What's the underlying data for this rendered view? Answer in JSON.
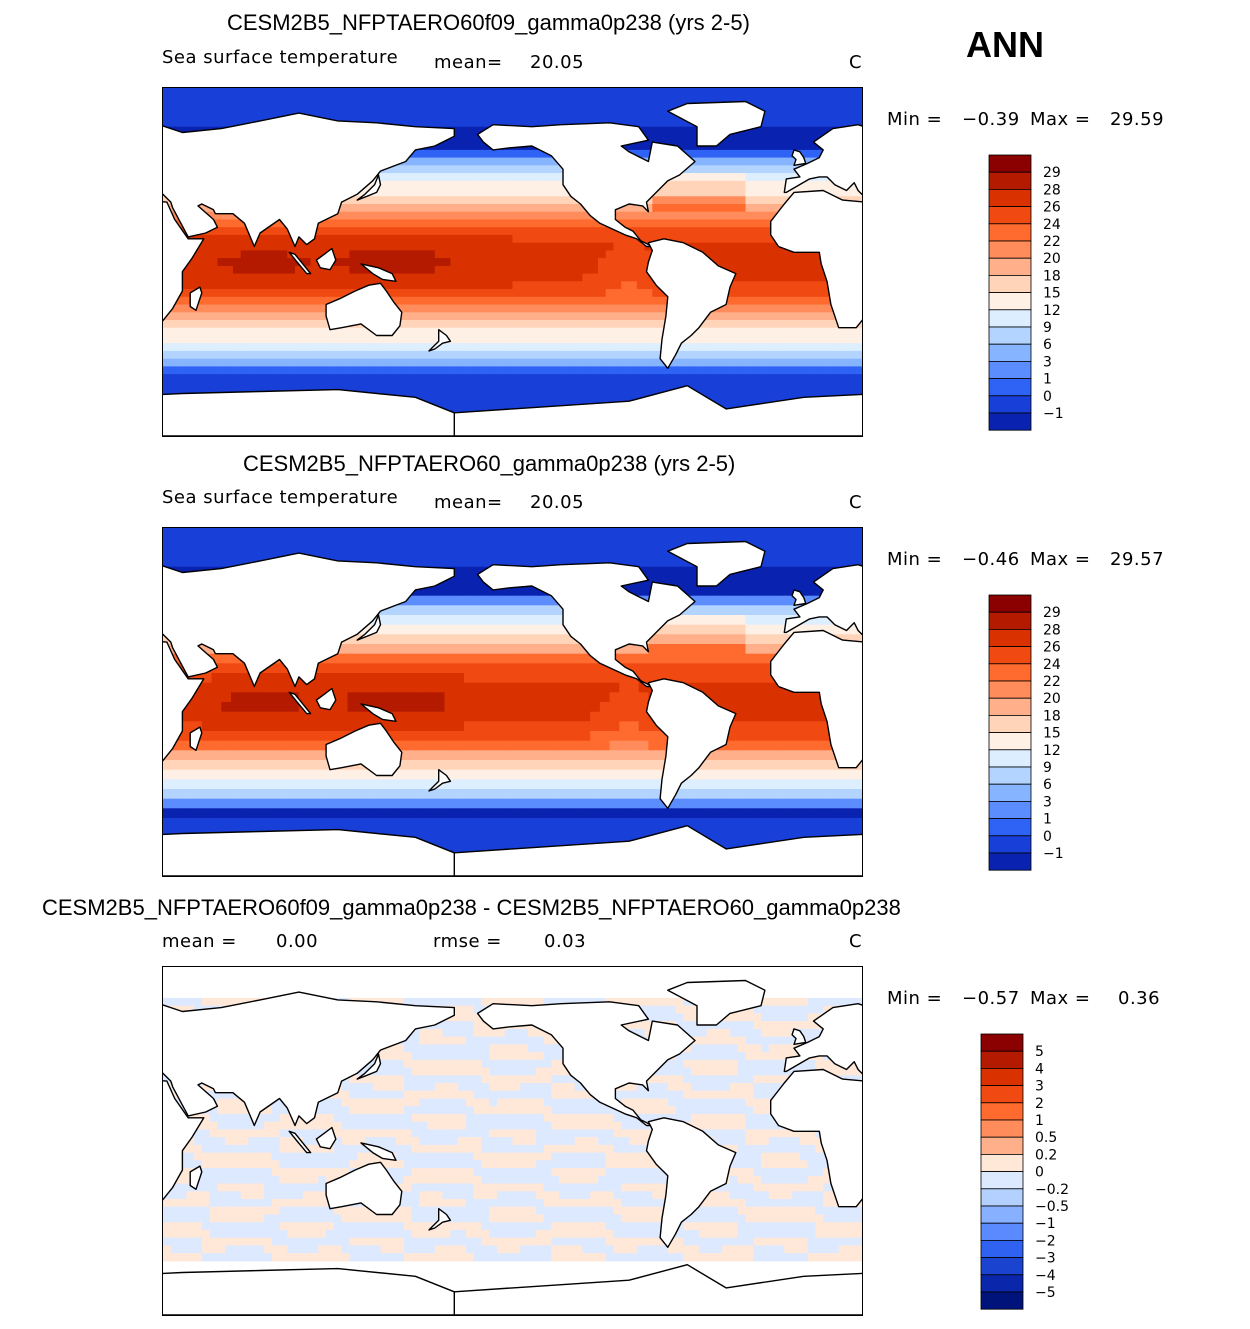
{
  "season": "ANN",
  "panels": [
    {
      "title": "CESM2B5_NFPTAERO60f09_gamma0p238 (yrs 2-5)",
      "variable": "Sea surface temperature",
      "stat_label": "mean=",
      "stat_value": "20.05",
      "units": "C",
      "min_label": "Min =",
      "min_value": "−0.39",
      "max_label": "Max =",
      "max_value": "29.59"
    },
    {
      "title": "CESM2B5_NFPTAERO60_gamma0p238 (yrs 2-5)",
      "variable": "Sea surface temperature",
      "stat_label": "mean=",
      "stat_value": "20.05",
      "units": "C",
      "min_label": "Min =",
      "min_value": "−0.46",
      "max_label": "Max =",
      "max_value": "29.57"
    },
    {
      "title": "CESM2B5_NFPTAERO60f09_gamma0p238 - CESM2B5_NFPTAERO60_gamma0p238",
      "mean_label": "mean =",
      "mean_value": "0.00",
      "rmse_label": "rmse =",
      "rmse_value": "0.03",
      "units": "C",
      "min_label": "Min =",
      "min_value": "−0.57",
      "max_label": "Max =",
      "max_value": "0.36"
    }
  ],
  "chart_data": [
    {
      "type": "heatmap",
      "title": "CESM2B5_NFPTAERO60f09_gamma0p238 (yrs 2-5)",
      "variable": "Sea surface temperature",
      "units": "C",
      "mean": 20.05,
      "min": -0.39,
      "max": 29.59,
      "colorbar_levels": [
        "29",
        "28",
        "26",
        "24",
        "22",
        "20",
        "18",
        "15",
        "12",
        "9",
        "6",
        "3",
        "1",
        "0",
        "−1"
      ],
      "colorbar_colors": [
        "#8b0000",
        "#b31a00",
        "#d93200",
        "#f04a12",
        "#ff6a2e",
        "#ff8c5a",
        "#ffb08a",
        "#ffd4b8",
        "#fff0e6",
        "#ddeeff",
        "#b3d4ff",
        "#87b4ff",
        "#5b8dff",
        "#2f63f5",
        "#1840d8",
        "#0a22b0"
      ]
    },
    {
      "type": "heatmap",
      "title": "CESM2B5_NFPTAERO60_gamma0p238 (yrs 2-5)",
      "variable": "Sea surface temperature",
      "units": "C",
      "mean": 20.05,
      "min": -0.46,
      "max": 29.57,
      "colorbar_levels": [
        "29",
        "28",
        "26",
        "24",
        "22",
        "20",
        "18",
        "15",
        "12",
        "9",
        "6",
        "3",
        "1",
        "0",
        "−1"
      ],
      "colorbar_colors": [
        "#8b0000",
        "#b31a00",
        "#d93200",
        "#f04a12",
        "#ff6a2e",
        "#ff8c5a",
        "#ffb08a",
        "#ffd4b8",
        "#fff0e6",
        "#ddeeff",
        "#b3d4ff",
        "#87b4ff",
        "#5b8dff",
        "#2f63f5",
        "#1840d8",
        "#0a22b0"
      ]
    },
    {
      "type": "heatmap",
      "title": "CESM2B5_NFPTAERO60f09_gamma0p238 - CESM2B5_NFPTAERO60_gamma0p238",
      "units": "C",
      "mean": 0.0,
      "rmse": 0.03,
      "min": -0.57,
      "max": 0.36,
      "colorbar_levels": [
        "5",
        "4",
        "3",
        "2",
        "1",
        "0.5",
        "0.2",
        "0",
        "−0.2",
        "−0.5",
        "−1",
        "−2",
        "−3",
        "−4",
        "−5"
      ],
      "colorbar_colors": [
        "#8b0000",
        "#b31a00",
        "#d93200",
        "#f04a12",
        "#ff6a2e",
        "#ff8c5a",
        "#ffb08a",
        "#ffe8d8",
        "#dce9ff",
        "#b3d0ff",
        "#87b0ff",
        "#5b8aff",
        "#2f62f0",
        "#1a44d0",
        "#0a26aa",
        "#00137a"
      ]
    }
  ]
}
